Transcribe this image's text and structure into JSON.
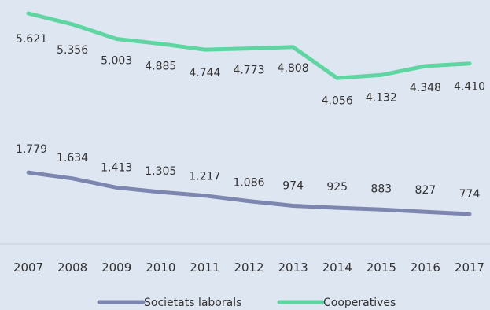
{
  "chart_data": {
    "type": "line",
    "categories": [
      "2007",
      "2008",
      "2009",
      "2010",
      "2011",
      "2012",
      "2013",
      "2014",
      "2015",
      "2016",
      "2017"
    ],
    "series": [
      {
        "name": "Cooperatives",
        "color": "#5fd6a2",
        "values": [
          5621,
          5356,
          5003,
          4885,
          4744,
          4773,
          4808,
          4056,
          4132,
          4348,
          4410
        ],
        "labels": [
          "5.621",
          "5.356",
          "5.003",
          "4.885",
          "4.744",
          "4.773",
          "4.808",
          "4.056",
          "4.132",
          "4.348",
          "4.410"
        ]
      },
      {
        "name": "Societats laborals",
        "color": "#7d86ae",
        "values": [
          1779,
          1634,
          1413,
          1305,
          1217,
          1086,
          974,
          925,
          883,
          827,
          774
        ],
        "labels": [
          "1.779",
          "1.634",
          "1.413",
          "1.305",
          "1.217",
          "1.086",
          "974",
          "925",
          "883",
          "827",
          "774"
        ]
      }
    ],
    "legend": {
      "position": "bottom",
      "order": [
        "Societats laborals",
        "Cooperatives"
      ]
    },
    "gridlines": false
  }
}
